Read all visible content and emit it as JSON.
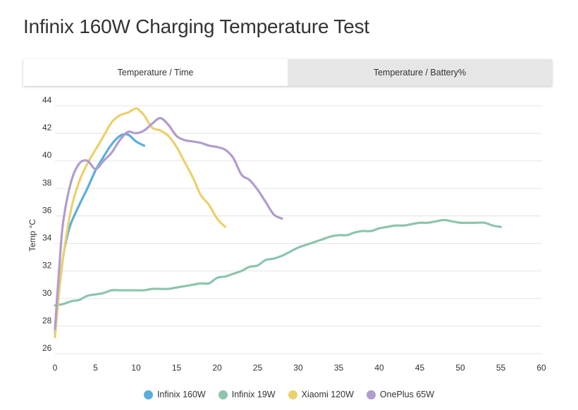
{
  "title": "Infinix 160W Charging Temperature Test",
  "tabs": [
    {
      "label": "Temperature / Time",
      "active": true
    },
    {
      "label": "Temperature / Battery%",
      "active": false
    }
  ],
  "chart_data": {
    "type": "line",
    "title": "Infinix 160W Charging Temperature Test",
    "xlabel": "",
    "ylabel": "Temp °C",
    "xlim": [
      0,
      60
    ],
    "ylim": [
      26,
      44
    ],
    "xticks": [
      0,
      5,
      10,
      15,
      20,
      25,
      30,
      35,
      40,
      45,
      50,
      55,
      60
    ],
    "yticks": [
      26,
      28,
      30,
      32,
      34,
      36,
      38,
      40,
      42,
      44
    ],
    "grid": "horizontal",
    "legend_position": "bottom",
    "series": [
      {
        "name": "Infinix 160W",
        "color": "#5aaedc",
        "x": [
          0,
          0.5,
          1,
          1.5,
          2,
          3,
          4,
          5,
          6,
          7,
          8,
          9,
          10,
          11
        ],
        "y": [
          27.5,
          30.5,
          33,
          34.5,
          35.5,
          36.8,
          38,
          39.3,
          40.3,
          41.2,
          41.8,
          41.9,
          41.4,
          41.1
        ]
      },
      {
        "name": "Infinix 19W",
        "color": "#8cc5ac",
        "x": [
          0,
          1,
          2,
          3,
          4,
          5,
          6,
          7,
          8,
          9,
          10,
          11,
          12,
          13,
          14,
          15,
          16,
          17,
          18,
          19,
          20,
          21,
          22,
          23,
          24,
          25,
          26,
          27,
          28,
          29,
          30,
          31,
          32,
          33,
          34,
          35,
          36,
          37,
          38,
          39,
          40,
          41,
          42,
          43,
          44,
          45,
          46,
          47,
          48,
          49,
          50,
          51,
          52,
          53,
          54,
          55
        ],
        "y": [
          29.5,
          29.6,
          29.8,
          29.9,
          30.2,
          30.3,
          30.4,
          30.6,
          30.6,
          30.6,
          30.6,
          30.6,
          30.7,
          30.7,
          30.7,
          30.8,
          30.9,
          31,
          31.1,
          31.1,
          31.5,
          31.6,
          31.8,
          32,
          32.3,
          32.4,
          32.8,
          32.9,
          33.1,
          33.4,
          33.7,
          33.9,
          34.1,
          34.3,
          34.5,
          34.6,
          34.6,
          34.8,
          34.9,
          34.9,
          35.1,
          35.2,
          35.3,
          35.3,
          35.4,
          35.5,
          35.5,
          35.6,
          35.7,
          35.6,
          35.5,
          35.5,
          35.5,
          35.5,
          35.3,
          35.2
        ]
      },
      {
        "name": "Xiaomi 120W",
        "color": "#ecd06b",
        "x": [
          0,
          0.5,
          1,
          2,
          3,
          4,
          5,
          6,
          7,
          8,
          9,
          10,
          10.5,
          11,
          12,
          13,
          14,
          15,
          16,
          17,
          18,
          19,
          20,
          21
        ],
        "y": [
          27.2,
          30.5,
          33,
          36.5,
          38.5,
          39.8,
          40.8,
          41.8,
          42.8,
          43.3,
          43.5,
          43.8,
          43.6,
          43.3,
          42.4,
          42.2,
          41.8,
          41,
          39.9,
          38.8,
          37.5,
          36.8,
          35.8,
          35.2
        ]
      },
      {
        "name": "OnePlus 65W",
        "color": "#b19ccc",
        "x": [
          0,
          0.5,
          1,
          2,
          3,
          4,
          5,
          6,
          7,
          8,
          9,
          10,
          11,
          12,
          13,
          14,
          15,
          16,
          17,
          18,
          19,
          20,
          21,
          22,
          23,
          24,
          25,
          26,
          27,
          28
        ],
        "y": [
          27.8,
          32,
          35.5,
          38.5,
          39.8,
          40,
          39.4,
          40,
          40.6,
          41.5,
          42.1,
          42,
          42.2,
          42.7,
          43.1,
          42.6,
          41.8,
          41.5,
          41.4,
          41.3,
          41.1,
          41,
          40.8,
          40.2,
          39,
          38.6,
          37.9,
          37,
          36.1,
          35.8
        ]
      }
    ]
  }
}
